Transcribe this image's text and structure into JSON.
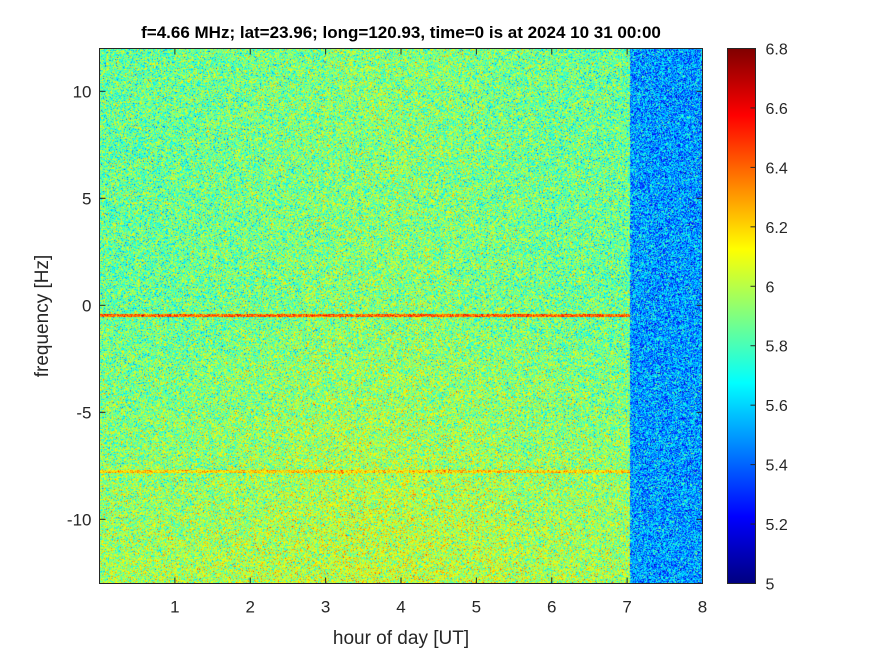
{
  "chart_data": {
    "type": "heatmap",
    "title": "f=4.66 MHz;  lat=23.96; long=120.93, time=0 is at 2024 10 31 00:00",
    "xlabel": "hour of day [UT]",
    "ylabel": "frequency [Hz]",
    "xlim": [
      0,
      8
    ],
    "ylim": [
      -13,
      12
    ],
    "xticks": [
      1,
      2,
      3,
      4,
      5,
      6,
      7,
      8
    ],
    "xtick_labels": [
      "1",
      "2",
      "3",
      "4",
      "5",
      "6",
      "7",
      "8"
    ],
    "yticks": [
      10,
      5,
      0,
      -5,
      -10
    ],
    "ytick_labels": [
      "10",
      "5",
      "0",
      "-5",
      "-10"
    ],
    "colormap": "jet",
    "clim": [
      5,
      6.8
    ],
    "colorbar_ticks": [
      6.8,
      6.6,
      6.4,
      6.2,
      6,
      5.8,
      5.6,
      5.4,
      5.2,
      5
    ],
    "colorbar_tick_labels": [
      "6.8",
      "6.6",
      "6.4",
      "6.2",
      "6",
      "5.8",
      "5.6",
      "5.4",
      "5.2",
      "5"
    ],
    "regions": [
      {
        "x": [
          0,
          7.05
        ],
        "y": [
          -13,
          12
        ],
        "typical_value": 5.85,
        "note": "noisy green/yellow power, warmer toward negative frequencies"
      },
      {
        "x": [
          7.05,
          8
        ],
        "y": [
          -13,
          12
        ],
        "typical_value": 5.5,
        "note": "lower, bluer power"
      }
    ],
    "features": [
      {
        "kind": "horizontal_line",
        "y": -0.5,
        "x": [
          0,
          7.05
        ],
        "value": 6.4
      },
      {
        "kind": "horizontal_line",
        "y": -7.8,
        "x": [
          0,
          7.05
        ],
        "value": 6.2
      }
    ],
    "grid": false
  }
}
